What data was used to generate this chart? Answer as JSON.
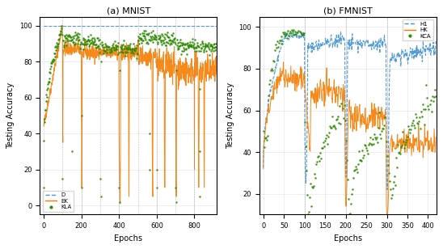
{
  "mnist": {
    "title": "(a) MNIST",
    "xlabel": "Epochs",
    "ylabel": "Testing Accuracy",
    "xlim": [
      -20,
      920
    ],
    "ylim": [
      -5,
      105
    ],
    "xticks": [
      0,
      200,
      400,
      600,
      800
    ],
    "yticks": [
      0,
      20,
      40,
      60,
      80,
      100
    ],
    "n_epochs": 920,
    "legend_labels": [
      "D",
      "EK",
      "KLA"
    ]
  },
  "fmnist": {
    "title": "(b) FMNIST",
    "xlabel": "Epochs",
    "ylabel": "Testing Accuracy",
    "xlim": [
      -10,
      420
    ],
    "ylim": [
      10,
      105
    ],
    "xticks": [
      0,
      50,
      100,
      150,
      200,
      250,
      300,
      350,
      400
    ],
    "yticks": [
      20,
      40,
      60,
      80,
      100
    ],
    "n_epochs": 420,
    "legend_labels": [
      "H1",
      "HK",
      "KCA"
    ]
  },
  "colors": {
    "D": "#4895d4",
    "EK": "#f57c00",
    "KLA": "#2e8b00"
  },
  "bg_color": "#ffffff"
}
